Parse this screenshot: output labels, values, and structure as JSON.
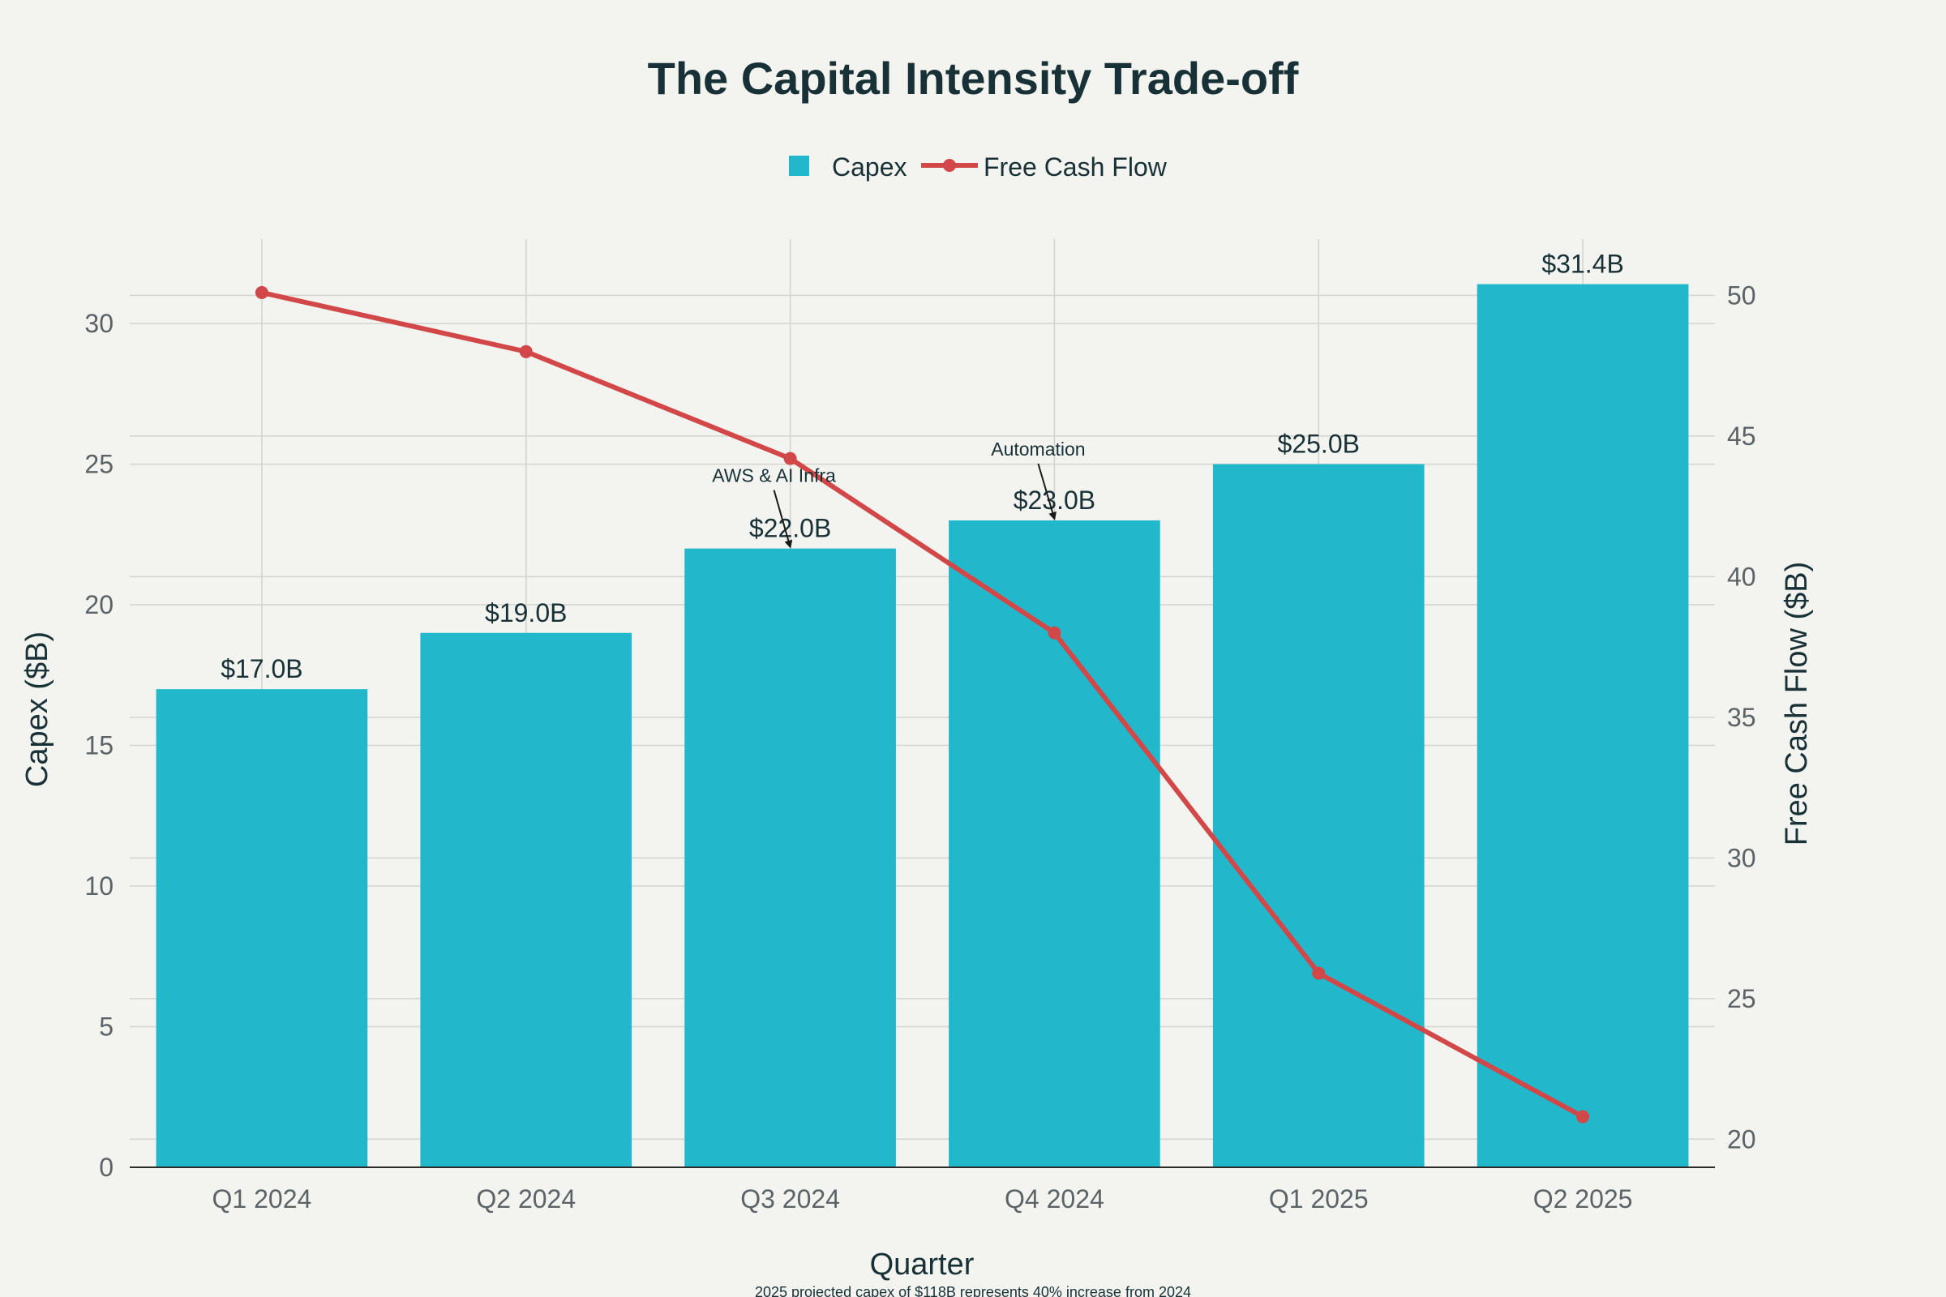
{
  "chart_data": {
    "type": "bar+line",
    "title": "The Capital Intensity Trade-off",
    "xlabel": "Quarter",
    "ylabel_left": "Capex ($B)",
    "ylabel_right": "Free Cash Flow ($B)",
    "ylim_left": [
      0,
      33
    ],
    "ylim_right": [
      19,
      52
    ],
    "yticks_left": [
      0,
      5,
      10,
      15,
      20,
      25,
      30
    ],
    "yticks_right": [
      20,
      25,
      30,
      35,
      40,
      45,
      50
    ],
    "categories": [
      "Q1 2024",
      "Q2 2024",
      "Q3 2024",
      "Q4 2024",
      "Q1 2025",
      "Q2 2025"
    ],
    "series": [
      {
        "name": "Capex",
        "type": "bar",
        "axis": "left",
        "color": "#22b8cc",
        "values": [
          17.0,
          19.0,
          22.0,
          23.0,
          25.0,
          31.4
        ],
        "labels": [
          "$17.0B",
          "$19.0B",
          "$22.0B",
          "$23.0B",
          "$25.0B",
          "$31.4B"
        ]
      },
      {
        "name": "Free Cash Flow",
        "type": "line",
        "axis": "right",
        "color": "#d24747",
        "values": [
          50.1,
          48.0,
          44.2,
          38.0,
          25.9,
          20.8
        ]
      }
    ],
    "annotations": [
      {
        "text": "AWS & AI Infra",
        "category": "Q3 2024",
        "value": 22.0
      },
      {
        "text": "Automation",
        "category": "Q4 2024",
        "value": 23.0
      }
    ],
    "footnote": "2025 projected capex of $118B represents 40% increase from 2024",
    "legend_position": "top-center",
    "grid": true
  }
}
